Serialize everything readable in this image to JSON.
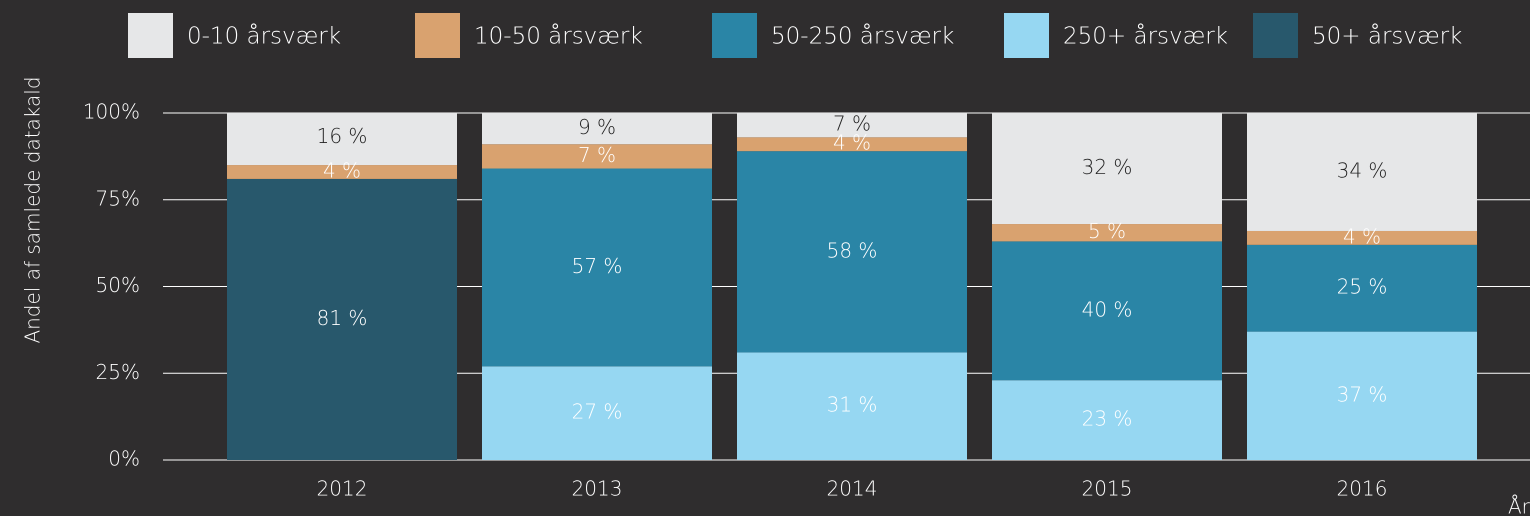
{
  "chart_data": {
    "type": "stacked_bar",
    "categories": [
      "2012",
      "2013",
      "2014",
      "2015",
      "2016"
    ],
    "series": [
      {
        "name": "0-10 årsværk",
        "color": "#e6e7e8",
        "values": [
          16,
          9,
          7,
          32,
          34
        ],
        "value_labels": [
          "16 %",
          "9 %",
          "7 %",
          "32 %",
          "34 %"
        ]
      },
      {
        "name": "10-50 årsværk",
        "color": "#d9a26f",
        "values": [
          4,
          7,
          4,
          5,
          4
        ],
        "value_labels": [
          "4 %",
          "7 %",
          "4 %",
          "5 %",
          "4 %"
        ]
      },
      {
        "name": "50-250 årsværk",
        "color": "#2a85a6",
        "values": [
          null,
          57,
          58,
          40,
          25
        ],
        "value_labels": [
          null,
          "57 %",
          "58 %",
          "40 %",
          "25 %"
        ]
      },
      {
        "name": "250+ årsværk",
        "color": "#96d7f2",
        "values": [
          null,
          27,
          31,
          23,
          37
        ],
        "value_labels": [
          null,
          "27 %",
          "31 %",
          "23 %",
          "37 %"
        ]
      },
      {
        "name": "50+ årsværk",
        "color": "#28586c",
        "values": [
          81,
          null,
          null,
          null,
          null
        ],
        "value_labels": [
          "81 %",
          null,
          null,
          null,
          null
        ]
      }
    ],
    "y_label": "Andel af samlede datakald",
    "x_label": "År",
    "ylim": [
      0,
      100
    ],
    "yticks": [
      {
        "value": 0,
        "label": "0%"
      },
      {
        "value": 25,
        "label": "25%"
      },
      {
        "value": 50,
        "label": "50%"
      },
      {
        "value": 75,
        "label": "75%"
      },
      {
        "value": 100,
        "label": "100%"
      }
    ],
    "grid": true,
    "legend": "top"
  }
}
